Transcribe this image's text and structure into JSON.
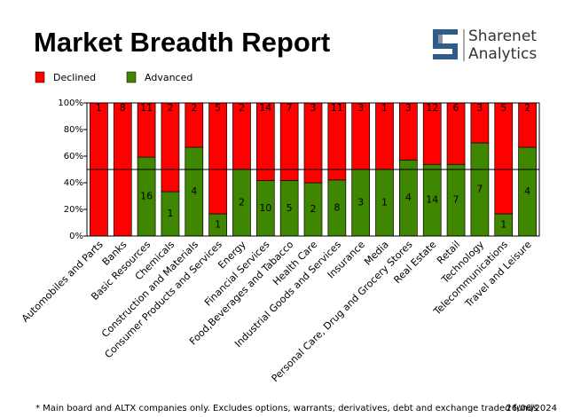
{
  "chart_data": {
    "type": "bar",
    "stacked": "percent",
    "title": "Market Breadth Report",
    "brand": {
      "name": "Sharenet",
      "sub": "Analytics"
    },
    "categories": [
      "Automobiles and Parts",
      "Banks",
      "Basic Resources",
      "Chemicals",
      "Construction and Materials",
      "Consumer Products and Services",
      "Energy",
      "Financial Services",
      "Food,Beverages and Tabacco",
      "Health Care",
      "Industrial Goods and Services",
      "Insurance",
      "Media",
      "Personal Care, Drug and Grocery Stores",
      "Real Estate",
      "Retail",
      "Technology",
      "Telecommunications",
      "Travel and Leisure"
    ],
    "series": [
      {
        "name": "Advanced",
        "color": "#3f8700",
        "values": [
          0,
          0,
          16,
          1,
          4,
          1,
          2,
          10,
          5,
          2,
          8,
          3,
          1,
          4,
          14,
          7,
          7,
          1,
          4
        ]
      },
      {
        "name": "Declined",
        "color": "#ff0000",
        "values": [
          1,
          8,
          11,
          2,
          2,
          5,
          2,
          14,
          7,
          3,
          11,
          3,
          1,
          3,
          12,
          6,
          3,
          5,
          2
        ]
      }
    ],
    "legend_order": [
      1,
      0
    ],
    "ylim": [
      0,
      100
    ],
    "yticks": [
      {
        "value": 0,
        "label": "0%"
      },
      {
        "value": 20,
        "label": "20%"
      },
      {
        "value": 40,
        "label": "40%"
      },
      {
        "value": 60,
        "label": "60%"
      },
      {
        "value": 80,
        "label": "80%"
      },
      {
        "value": 100,
        "label": "100%"
      }
    ],
    "reference_line": 50,
    "footnote": "* Main board and ALTX companies only. Excludes options, warrants, derivatives, debt and exchange traded funds",
    "date": "26/06/2024"
  }
}
